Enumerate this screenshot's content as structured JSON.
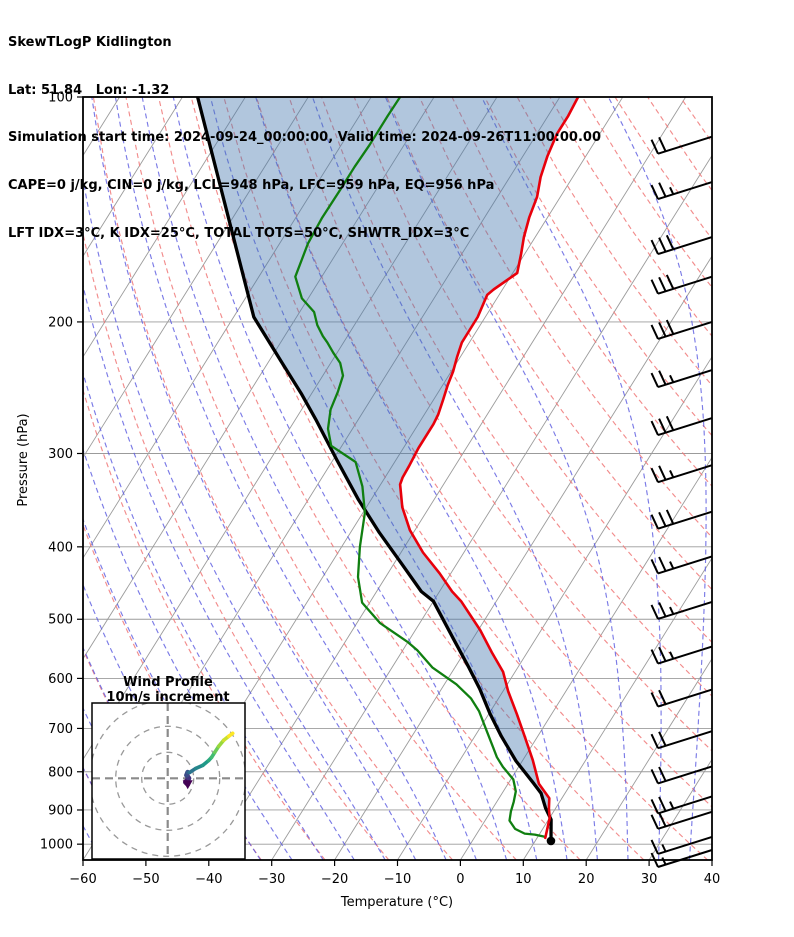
{
  "header": {
    "lines": [
      "SkewTLogP Kidlington",
      "Lat: 51.84   Lon: -1.32",
      "Simulation start time: 2024-09-24_00:00:00, Valid time: 2024-09-26T11:00:00.00",
      "CAPE=0 j/kg, CIN=0 j/kg, LCL=948 hPa, LFC=959 hPa, EQ=956 hPa",
      "LFT IDX=3°C, K IDX=25°C, TOTAL TOTS=50°C, SHWTR_IDX=3°C"
    ]
  },
  "chart_data": {
    "type": "skewt-logp",
    "station": "Kidlington",
    "skew_slope": 1.6,
    "axes": {
      "x": {
        "label": "Temperature (°C)",
        "min": -60,
        "max": 40,
        "ticks": [
          -60,
          -50,
          -40,
          -30,
          -20,
          -10,
          0,
          10,
          20,
          30,
          40
        ]
      },
      "y": {
        "label": "Pressure (hPa)",
        "scale": "log",
        "min": 100,
        "max": 1050,
        "ticks": [
          100,
          200,
          300,
          400,
          500,
          600,
          700,
          800,
          900,
          1000
        ]
      }
    },
    "background": {
      "isobars": [
        100,
        200,
        300,
        400,
        500,
        600,
        700,
        800,
        900,
        1000
      ],
      "isotherms": {
        "min": -140,
        "max": 40,
        "step": 10
      },
      "dry_adiabats": {
        "min": -65,
        "max": 185,
        "step": 10
      },
      "moist_adiabats": {
        "min": -60,
        "max": 40,
        "step": 5
      }
    },
    "colors": {
      "temperature": "#e8000b",
      "dewpoint": "#107f10",
      "parcel": "#000000",
      "cape_shading": "#4678af",
      "dry_adiabat": "#f07878",
      "moist_adiabat": "#5a5ae0",
      "isotherm": "#9b9b9b",
      "grid": "#9b9b9b"
    },
    "series": {
      "temperature_profile": [
        [
          100,
          -57.1
        ],
        [
          106,
          -56.8
        ],
        [
          112,
          -56.8
        ],
        [
          120,
          -56.1
        ],
        [
          128,
          -55.1
        ],
        [
          136,
          -53.7
        ],
        [
          145,
          -52.9
        ],
        [
          154,
          -51.8
        ],
        [
          162,
          -50.6
        ],
        [
          172,
          -49.3
        ],
        [
          181,
          -51.4
        ],
        [
          184,
          -51.9
        ],
        [
          197,
          -51.2
        ],
        [
          206,
          -51.2
        ],
        [
          213,
          -51.2
        ],
        [
          223,
          -50.5
        ],
        [
          233,
          -49.7
        ],
        [
          243,
          -49.2
        ],
        [
          254,
          -48.5
        ],
        [
          266,
          -47.8
        ],
        [
          274,
          -47.6
        ],
        [
          295,
          -47.6
        ],
        [
          312,
          -47.3
        ],
        [
          323,
          -47.2
        ],
        [
          330,
          -46.9
        ],
        [
          354,
          -44.3
        ],
        [
          380,
          -40.8
        ],
        [
          407,
          -36.5
        ],
        [
          434,
          -31.8
        ],
        [
          459,
          -28.0
        ],
        [
          473,
          -25.6
        ],
        [
          517,
          -19.7
        ],
        [
          554,
          -15.6
        ],
        [
          588,
          -11.9
        ],
        [
          624,
          -9.2
        ],
        [
          670,
          -5.5
        ],
        [
          717,
          -2.1
        ],
        [
          772,
          1.6
        ],
        [
          830,
          4.9
        ],
        [
          868,
          8.0
        ],
        [
          897,
          9.0
        ],
        [
          922,
          10.0
        ],
        [
          981,
          11.3
        ]
      ],
      "dewpoint_profile": [
        [
          100,
          -85.4
        ],
        [
          106,
          -85.5
        ],
        [
          116,
          -85.5
        ],
        [
          124,
          -85.7
        ],
        [
          133,
          -85.7
        ],
        [
          145,
          -85.8
        ],
        [
          157,
          -85.5
        ],
        [
          174,
          -84.2
        ],
        [
          186,
          -81.0
        ],
        [
          194,
          -77.7
        ],
        [
          202,
          -75.9
        ],
        [
          209,
          -73.9
        ],
        [
          213,
          -72.6
        ],
        [
          220,
          -70.6
        ],
        [
          227,
          -68.5
        ],
        [
          236,
          -66.8
        ],
        [
          248,
          -66.0
        ],
        [
          262,
          -65.4
        ],
        [
          278,
          -63.9
        ],
        [
          293,
          -61.7
        ],
        [
          308,
          -56.2
        ],
        [
          332,
          -52.7
        ],
        [
          360,
          -49.7
        ],
        [
          400,
          -47.1
        ],
        [
          439,
          -44.4
        ],
        [
          475,
          -41.2
        ],
        [
          506,
          -36.3
        ],
        [
          536,
          -30.1
        ],
        [
          550,
          -27.7
        ],
        [
          580,
          -23.6
        ],
        [
          611,
          -18.1
        ],
        [
          638,
          -14.4
        ],
        [
          664,
          -11.8
        ],
        [
          706,
          -8.6
        ],
        [
          742,
          -6.0
        ],
        [
          765,
          -4.4
        ],
        [
          788,
          -2.5
        ],
        [
          819,
          0.4
        ],
        [
          850,
          2.0
        ],
        [
          878,
          2.7
        ],
        [
          904,
          3.2
        ],
        [
          930,
          3.9
        ],
        [
          954,
          5.6
        ],
        [
          968,
          7.6
        ],
        [
          971,
          9.3
        ],
        [
          977,
          11.0
        ]
      ],
      "parcel_profile": [
        [
          100,
          -117.6
        ],
        [
          197,
          -86.8
        ],
        [
          226,
          -78.0
        ],
        [
          250,
          -71.5
        ],
        [
          270,
          -66.8
        ],
        [
          306,
          -59.4
        ],
        [
          346,
          -52.0
        ],
        [
          383,
          -45.4
        ],
        [
          420,
          -39.0
        ],
        [
          459,
          -32.9
        ],
        [
          473,
          -30.0
        ],
        [
          531,
          -23.1
        ],
        [
          580,
          -17.8
        ],
        [
          620,
          -13.9
        ],
        [
          668,
          -9.9
        ],
        [
          717,
          -5.8
        ],
        [
          774,
          -1.0
        ],
        [
          830,
          4.1
        ],
        [
          855,
          6.2
        ],
        [
          895,
          8.4
        ],
        [
          927,
          10.4
        ],
        [
          990,
          12.5
        ]
      ]
    },
    "wind_barbs": {
      "full_tick": 10,
      "half_tick": 5,
      "levels": [
        {
          "p": 113,
          "speed": 20
        },
        {
          "p": 130,
          "speed": 25
        },
        {
          "p": 154,
          "speed": 30
        },
        {
          "p": 174,
          "speed": 30
        },
        {
          "p": 200,
          "speed": 30
        },
        {
          "p": 232,
          "speed": 25
        },
        {
          "p": 269,
          "speed": 30
        },
        {
          "p": 311,
          "speed": 25
        },
        {
          "p": 359,
          "speed": 30
        },
        {
          "p": 412,
          "speed": 25
        },
        {
          "p": 474,
          "speed": 25
        },
        {
          "p": 544,
          "speed": 25
        },
        {
          "p": 621,
          "speed": 20
        },
        {
          "p": 706,
          "speed": 20
        },
        {
          "p": 787,
          "speed": 20
        },
        {
          "p": 863,
          "speed": 25
        },
        {
          "p": 905,
          "speed": 20
        },
        {
          "p": 978,
          "speed": 15
        },
        {
          "p": 1018,
          "speed": 15
        }
      ]
    },
    "hodograph": {
      "title_lines": [
        "Wind Profile",
        "10m/s increment"
      ],
      "units": "m/s",
      "ring_interval": 10,
      "rings": [
        10,
        20,
        30
      ],
      "trace_uv": [
        [
          7.7,
          -2.3
        ],
        [
          6.9,
          -1.5
        ],
        [
          8.1,
          0.0
        ],
        [
          7.3,
          1.2
        ],
        [
          7.7,
          2.3
        ],
        [
          8.5,
          2.3
        ],
        [
          10.8,
          3.8
        ],
        [
          13.5,
          5.0
        ],
        [
          15.8,
          6.9
        ],
        [
          16.9,
          8.1
        ],
        [
          18.1,
          10.0
        ],
        [
          19.6,
          12.3
        ],
        [
          21.5,
          14.6
        ],
        [
          23.5,
          16.2
        ],
        [
          25.0,
          17.3
        ]
      ],
      "colormap": [
        "#440154",
        "#46327e",
        "#365c8d",
        "#277f8e",
        "#1fa187",
        "#4ac16d",
        "#a0da39",
        "#fde725"
      ]
    }
  }
}
